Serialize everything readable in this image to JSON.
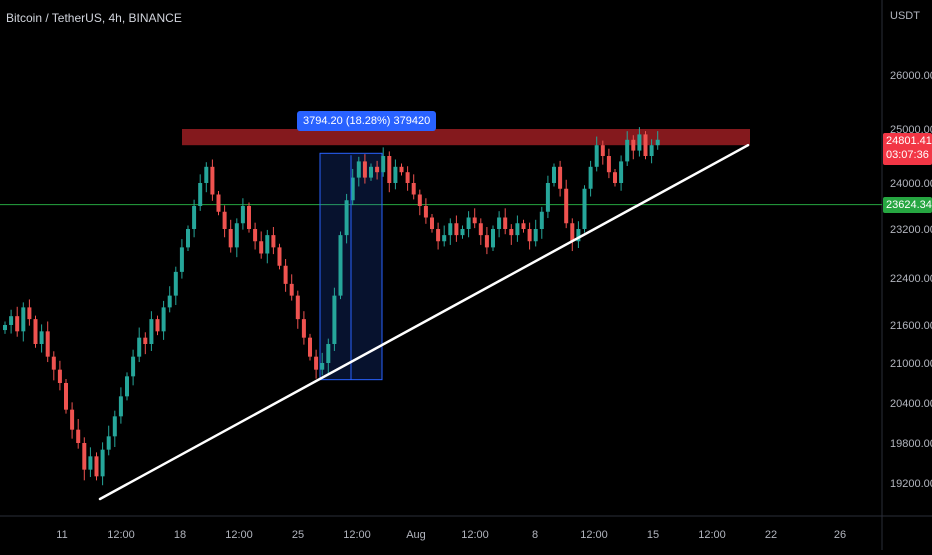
{
  "header": {
    "symbol_title": "Bitcoin / TetherUS, 4h, BINANCE"
  },
  "axis": {
    "unit": "USDT"
  },
  "price_tags": {
    "current_price": "24801.41",
    "countdown": "03:07:36",
    "horizontal_line_price": "23624.34"
  },
  "measurement": {
    "label": "3794.20 (18.28%) 379420"
  },
  "colors": {
    "background": "#000000",
    "up": "#26a69a",
    "down": "#ef5350",
    "resistance_zone": "#8b1a1f",
    "trendline": "#ffffff",
    "horizontal_line": "#26a641",
    "measure": "#2962ff",
    "axis_text": "#b2b5be"
  },
  "chart_data": {
    "type": "candlestick",
    "title": "Bitcoin / TetherUS, 4h, BINANCE",
    "y_unit": "USDT",
    "ylim": [
      18700,
      26800
    ],
    "y_ticks": [
      "26000.00",
      "25000.00",
      "24000.00",
      "23200.00",
      "22400.00",
      "21600.00",
      "21000.00",
      "20400.00",
      "19800.00",
      "19200.00"
    ],
    "y_tick_values": [
      26000,
      25000,
      24000,
      23200,
      22400,
      21600,
      21000,
      20400,
      19800,
      19200
    ],
    "x_ticks": [
      "11",
      "12:00",
      "18",
      "12:00",
      "25",
      "12:00",
      "Aug",
      "12:00",
      "8",
      "12:00",
      "15",
      "12:00",
      "22",
      "26"
    ],
    "x_tick_index": [
      10,
      20,
      30,
      40,
      50,
      60,
      70,
      80,
      90,
      100,
      110,
      120,
      130,
      142
    ],
    "close_path": [
      21600,
      21750,
      21500,
      21900,
      21700,
      21300,
      21500,
      21100,
      20900,
      20700,
      20300,
      20000,
      19800,
      19400,
      19600,
      19300,
      19700,
      19900,
      20200,
      20500,
      20800,
      21100,
      21400,
      21300,
      21700,
      21500,
      21900,
      22100,
      22500,
      22900,
      23200,
      23600,
      24000,
      24300,
      23800,
      23500,
      23200,
      22900,
      23300,
      23600,
      23200,
      23000,
      22800,
      23100,
      22900,
      22600,
      22300,
      22100,
      21700,
      21400,
      21100,
      20900,
      21000,
      21300,
      22100,
      23100,
      23700,
      24100,
      24400,
      24100,
      24300,
      24200,
      24500,
      24000,
      24300,
      24200,
      24000,
      23800,
      23600,
      23400,
      23200,
      23000,
      23100,
      23300,
      23100,
      23200,
      23400,
      23300,
      23100,
      22900,
      23200,
      23400,
      23200,
      23100,
      23300,
      23200,
      23000,
      23200,
      23500,
      24000,
      24300,
      23900,
      23300,
      23000,
      23200,
      23900,
      24300,
      24700,
      24500,
      24200,
      24000,
      24400,
      24800,
      24600,
      24900,
      24500,
      24700,
      24801
    ],
    "resistance_zone": [
      24700,
      25000
    ],
    "horizontal_line_value": 23624.34,
    "trendline": {
      "from": [
        8,
        18950
      ],
      "to": [
        132,
        24700
      ]
    },
    "measure_range": {
      "x": [
        53,
        63
      ],
      "y": [
        20750,
        24550
      ]
    }
  }
}
